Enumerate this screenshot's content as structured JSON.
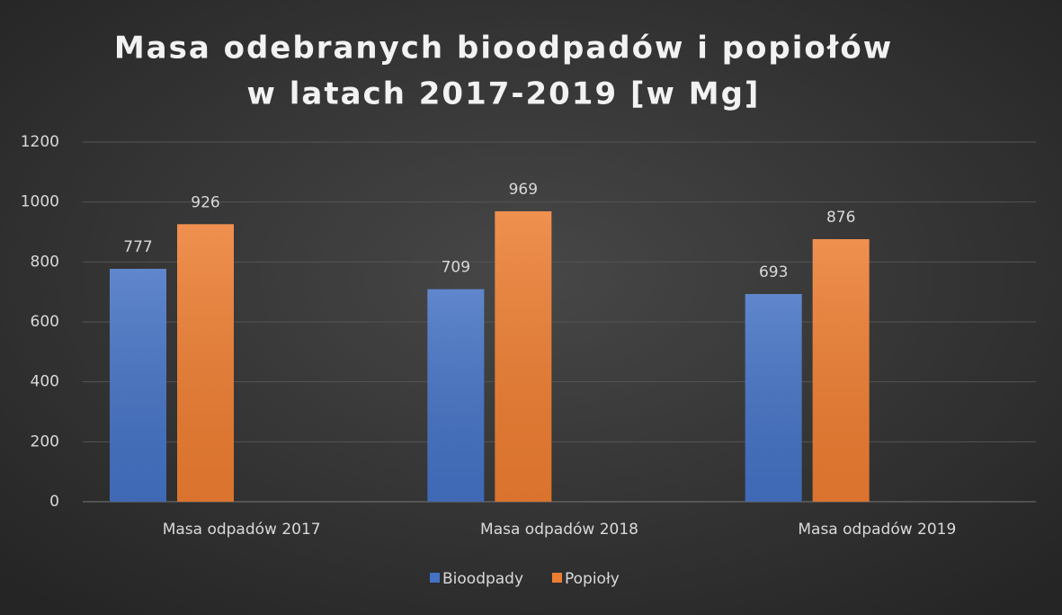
{
  "chart_data": {
    "type": "bar",
    "title": [
      "Masa odebranych bioodpadów i popiołów",
      "w latach 2017-2019 [w Mg]"
    ],
    "categories": [
      "Masa odpadów 2017",
      "Masa odpadów 2018",
      "Masa odpadów 2019"
    ],
    "series": [
      {
        "name": "Bioodpady",
        "color": "#4472c4",
        "values": [
          777,
          709,
          693
        ]
      },
      {
        "name": "Popioły",
        "color": "#ed7d31",
        "values": [
          926,
          969,
          876
        ]
      }
    ],
    "ylim": [
      0,
      1200
    ],
    "yticks": [
      0,
      200,
      400,
      600,
      800,
      1000,
      1200
    ],
    "grid": true,
    "legend": "bottom"
  }
}
